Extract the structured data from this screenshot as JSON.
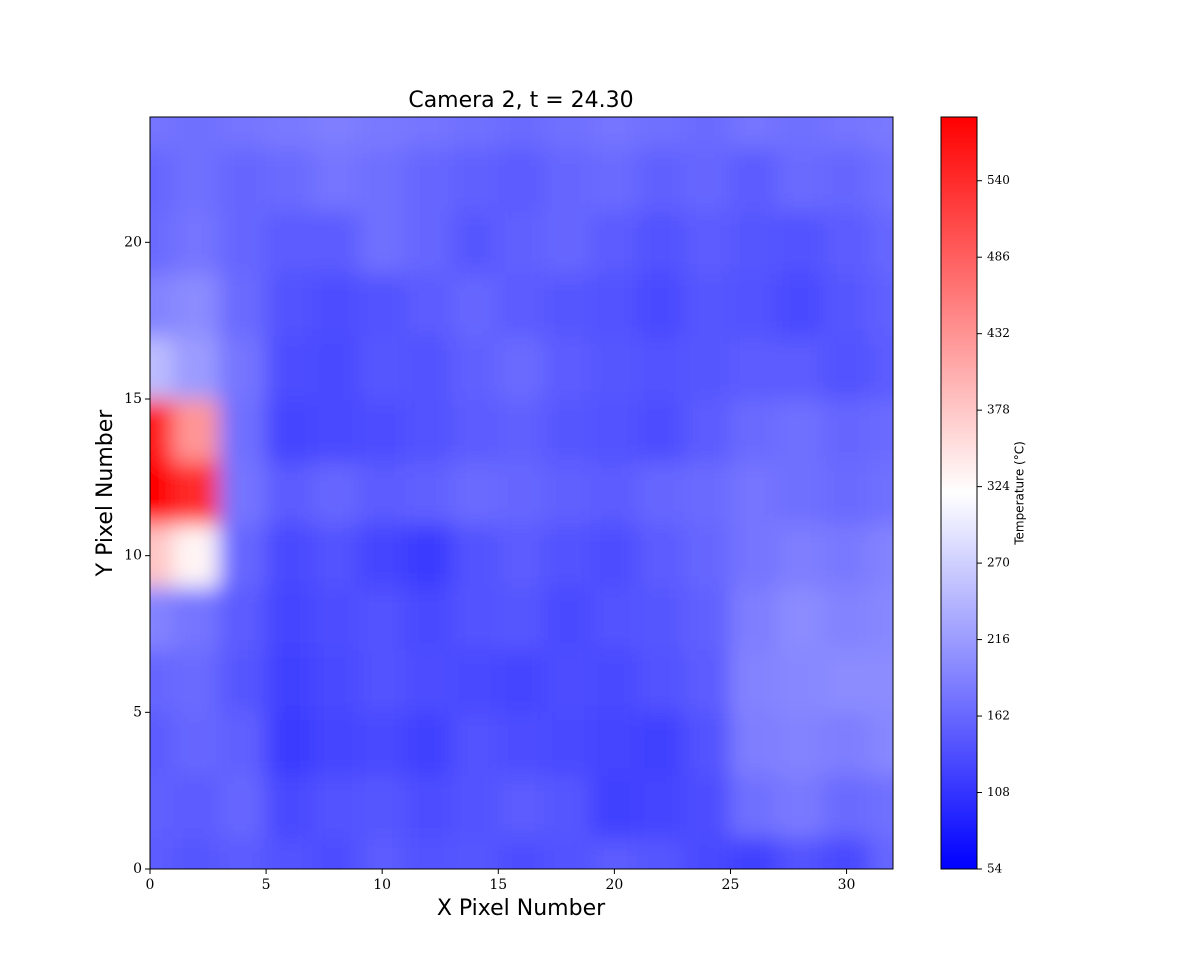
{
  "chart_data": {
    "type": "heatmap",
    "title": "Camera 2, t = 24.30",
    "xlabel": "X Pixel Number",
    "ylabel": "Y Pixel Number",
    "x": [
      0,
      2,
      4,
      6,
      8,
      10,
      12,
      14,
      16,
      18,
      20,
      22,
      24,
      26,
      28,
      30,
      32
    ],
    "y": [
      0,
      2,
      4,
      6,
      8,
      10,
      12,
      14,
      16,
      18,
      20,
      22,
      24
    ],
    "values": [
      [
        150,
        145,
        150,
        140,
        135,
        150,
        140,
        145,
        135,
        140,
        150,
        145,
        130,
        120,
        140,
        130,
        160
      ],
      [
        155,
        150,
        160,
        130,
        140,
        145,
        135,
        140,
        150,
        145,
        120,
        125,
        135,
        170,
        180,
        165,
        170
      ],
      [
        150,
        160,
        155,
        115,
        125,
        130,
        120,
        140,
        135,
        130,
        125,
        120,
        140,
        185,
        190,
        185,
        195
      ],
      [
        160,
        165,
        145,
        120,
        130,
        140,
        135,
        130,
        125,
        135,
        130,
        140,
        150,
        190,
        195,
        200,
        200
      ],
      [
        190,
        175,
        150,
        125,
        135,
        140,
        130,
        140,
        145,
        130,
        140,
        145,
        155,
        185,
        200,
        190,
        195
      ],
      [
        380,
        330,
        160,
        130,
        140,
        125,
        115,
        140,
        150,
        140,
        135,
        150,
        160,
        175,
        185,
        180,
        190
      ],
      [
        585,
        540,
        175,
        150,
        160,
        150,
        155,
        165,
        160,
        155,
        150,
        160,
        165,
        175,
        170,
        165,
        170
      ],
      [
        560,
        430,
        170,
        125,
        130,
        135,
        140,
        150,
        155,
        145,
        140,
        135,
        150,
        165,
        170,
        160,
        165
      ],
      [
        250,
        215,
        175,
        135,
        130,
        145,
        140,
        155,
        165,
        150,
        145,
        140,
        145,
        150,
        150,
        140,
        150
      ],
      [
        190,
        200,
        165,
        140,
        135,
        140,
        150,
        160,
        150,
        145,
        140,
        130,
        145,
        140,
        130,
        145,
        155
      ],
      [
        165,
        175,
        160,
        150,
        150,
        170,
        160,
        145,
        155,
        160,
        150,
        140,
        150,
        145,
        140,
        150,
        160
      ],
      [
        160,
        170,
        160,
        165,
        175,
        170,
        160,
        155,
        150,
        160,
        165,
        155,
        160,
        150,
        165,
        160,
        170
      ],
      [
        175,
        170,
        175,
        180,
        185,
        180,
        175,
        170,
        165,
        170,
        175,
        170,
        165,
        175,
        170,
        175,
        180
      ]
    ],
    "xlim": [
      0,
      32
    ],
    "ylim": [
      0,
      24
    ],
    "xticks": [
      0,
      5,
      10,
      15,
      20,
      25,
      30
    ],
    "yticks": [
      0,
      5,
      10,
      15,
      20
    ],
    "colorbar": {
      "label": "Temperature (°C)",
      "lim": [
        54,
        585
      ],
      "ticks": [
        54,
        108,
        162,
        216,
        270,
        324,
        378,
        432,
        486,
        540
      ],
      "colors": [
        "#0000ff",
        "#ffffff",
        "#ff0000"
      ]
    }
  }
}
